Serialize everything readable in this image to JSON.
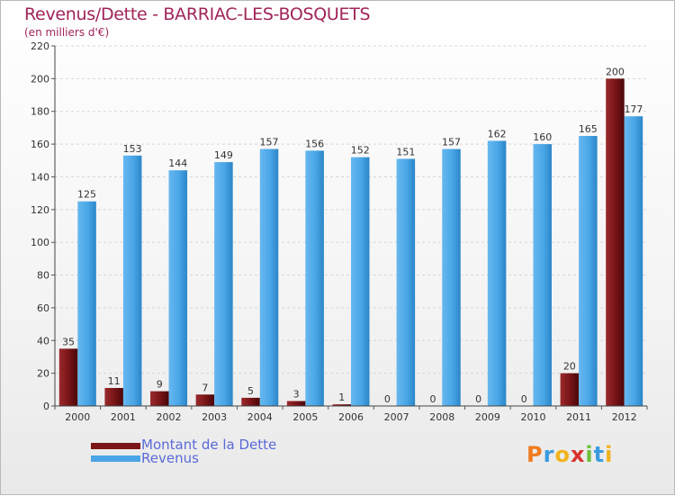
{
  "header": {
    "title": "Revenus/Dette - BARRIAC-LES-BOSQUETS",
    "subtitle": "(en milliers d'€)"
  },
  "legend": {
    "items": [
      {
        "label": "Montant de la Dette",
        "color": "#7a1518"
      },
      {
        "label": "Revenus",
        "color": "#4aa6e6"
      }
    ]
  },
  "logo": {
    "letters": [
      "P",
      "r",
      "o",
      "x",
      "i",
      "t",
      "i"
    ],
    "colors": [
      "#ef7c1e",
      "#3a9be0",
      "#f2b21c",
      "#d8322f",
      "#6bbf3a",
      "#3a9be0",
      "#f2b21c"
    ]
  },
  "chart_data": {
    "type": "bar",
    "categories": [
      "2000",
      "2001",
      "2002",
      "2003",
      "2004",
      "2005",
      "2006",
      "2007",
      "2008",
      "2009",
      "2010",
      "2011",
      "2012"
    ],
    "series": [
      {
        "name": "Montant de la Dette",
        "values": [
          35,
          11,
          9,
          7,
          5,
          3,
          1,
          0,
          0,
          0,
          0,
          20,
          200
        ],
        "color": "#7a1518"
      },
      {
        "name": "Revenus",
        "values": [
          125,
          153,
          144,
          149,
          157,
          156,
          152,
          151,
          157,
          162,
          160,
          165,
          177
        ],
        "color": "#4aa6e6"
      }
    ],
    "ylim": [
      0,
      220
    ],
    "yticks": [
      0,
      20,
      40,
      60,
      80,
      100,
      120,
      140,
      160,
      180,
      200,
      220
    ],
    "xlabel": "",
    "ylabel": "",
    "grid": true,
    "legend_position": "bottom-left"
  }
}
